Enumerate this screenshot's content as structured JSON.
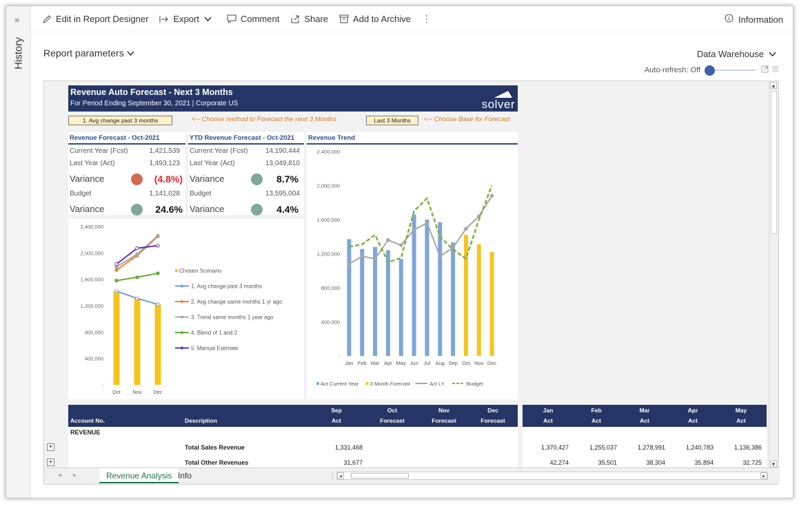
{
  "sidebar": {
    "expand_icon": "chevrons-right-icon",
    "label": "History"
  },
  "toolbar": {
    "edit_label": "Edit in Report Designer",
    "export_label": "Export",
    "comment_label": "Comment",
    "share_label": "Share",
    "archive_label": "Add to Archive",
    "info_label": "Information"
  },
  "report_parameters_label": "Report parameters",
  "data_source": "Data Warehouse",
  "auto_refresh_label": "Auto-refresh: Off",
  "report": {
    "title": "Revenue Auto Forecast - Next 3 Months",
    "subtitle": "For Period Ending September 30, 2021 | Corporate US",
    "logo": "solver",
    "method_select": "1. Avg change past 3 months",
    "method_hint": "<-- Choose method to Forecast the next 3 Months",
    "base_select": "Last 3 Months",
    "base_hint": "<-- Choose Base for Forecast"
  },
  "kpi_left": {
    "title": "Revenue Forecast - Oct-2021",
    "cy_label": "Current Year (Fcst)",
    "cy_value": "1,421,539",
    "ly_label": "Last Year (Act)",
    "ly_value": "1,493,123",
    "var1_label": "Variance",
    "var1_value": "(4.8%)",
    "budget_label": "Budget",
    "budget_value": "1,141,028",
    "var2_label": "Variance",
    "var2_value": "24.6%"
  },
  "kpi_right": {
    "title": "YTD Revenue Forecast - Oct-2021",
    "cy_label": "Current Year (Fcst)",
    "cy_value": "14,190,444",
    "ly_label": "Last Year (Act)",
    "ly_value": "13,049,810",
    "var1_label": "Variance",
    "var1_value": "8.7%",
    "budget_label": "Budget",
    "budget_value": "13,595,004",
    "var2_label": "Variance",
    "var2_value": "4.4%"
  },
  "colors": {
    "red": "#d06b4e",
    "green": "#7fa899",
    "navy": "#253565",
    "blue_bar": "#7fa5d9",
    "gold_bar": "#f7c41f"
  },
  "chart_data": [
    {
      "type": "bar",
      "title": "",
      "categories": [
        "Oct",
        "Nov",
        "Dec"
      ],
      "ylim": [
        0,
        2400000
      ],
      "yticks": [
        "-",
        "400,000",
        "800,000",
        "1,200,000",
        "1,600,000",
        "2,000,000",
        "2,400,000"
      ],
      "series": [
        {
          "name": "Chosen Scenario",
          "kind": "bar",
          "color": "#f7c41f",
          "values": [
            1421539,
            1310000,
            1220000
          ]
        },
        {
          "name": "1. Avg change past 3 months",
          "kind": "line",
          "color": "#6f9bd6",
          "values": [
            1421539,
            1310000,
            1220000
          ]
        },
        {
          "name": "2. Avg change same months 1 yr ago",
          "kind": "line",
          "color": "#e8823a",
          "values": [
            1740000,
            1960000,
            2250000
          ]
        },
        {
          "name": "3. Trend same months 1 year ago",
          "kind": "line",
          "color": "#a6a6a6",
          "values": [
            1790000,
            1980000,
            2260000
          ]
        },
        {
          "name": "4. Blend of 1 and 2",
          "kind": "line",
          "color": "#67a83c",
          "values": [
            1580000,
            1630000,
            1690000
          ]
        },
        {
          "name": "5. Manual Estimate",
          "kind": "line",
          "color": "#6b2fa0",
          "values": [
            1830000,
            2070000,
            2110000
          ]
        }
      ]
    },
    {
      "type": "bar",
      "title": "Revenue Trend",
      "categories": [
        "Jan",
        "Feb",
        "Mar",
        "Apr",
        "May",
        "Jun",
        "Jul",
        "Aug",
        "Sep",
        "Oct",
        "Nov",
        "Dec"
      ],
      "ylim": [
        0,
        2400000
      ],
      "yticks": [
        "-",
        "400,000",
        "800,000",
        "1,200,000",
        "1,600,000",
        "2,000,000",
        "2,400,000"
      ],
      "series": [
        {
          "name": "Act Current Year",
          "kind": "bar",
          "color": "#7fa5d9",
          "values": [
            1370427,
            1255037,
            1278991,
            1240783,
            1136386,
            1660000,
            1600000,
            1570000,
            1331468,
            null,
            null,
            null
          ]
        },
        {
          "name": "3 Month Forecast",
          "kind": "bar",
          "color": "#f7c41f",
          "values": [
            null,
            null,
            null,
            null,
            null,
            null,
            null,
            null,
            null,
            1421539,
            1310000,
            1220000
          ]
        },
        {
          "name": "Act LY",
          "kind": "line",
          "color": "#a6a6a6",
          "values": [
            1080000,
            1170000,
            1140000,
            1360000,
            1300000,
            1480000,
            1560000,
            1170000,
            1270000,
            1493123,
            1640000,
            1880000
          ]
        },
        {
          "name": "Budget",
          "kind": "line",
          "color": "#7db33d",
          "values": [
            1280000,
            1310000,
            1420000,
            1100000,
            1150000,
            1700000,
            1850000,
            1400000,
            1250000,
            1141028,
            1600000,
            2000000
          ]
        }
      ]
    }
  ],
  "table": {
    "headers": [
      {
        "top": "",
        "bottom": "Account No."
      },
      {
        "top": "",
        "bottom": "Description"
      },
      {
        "top": "Sep",
        "bottom": "Act"
      },
      {
        "top": "Oct",
        "bottom": "Forecast"
      },
      {
        "top": "Nov",
        "bottom": "Forecast"
      },
      {
        "top": "Dec",
        "bottom": "Forecast"
      }
    ],
    "headers_right": [
      {
        "top": "Jan",
        "bottom": "Act"
      },
      {
        "top": "Feb",
        "bottom": "Act"
      },
      {
        "top": "Mar",
        "bottom": "Act"
      },
      {
        "top": "Apr",
        "bottom": "Act"
      },
      {
        "top": "May",
        "bottom": "Act"
      }
    ],
    "section": "REVENUE",
    "rows": [
      {
        "description": "Total Sales Revenue",
        "sep": "1,331,468",
        "right": [
          "1,370,427",
          "1,255,037",
          "1,278,991",
          "1,240,783",
          "1,136,386"
        ]
      },
      {
        "description": "Total Other Revenues",
        "sep": "31,677",
        "right": [
          "42,274",
          "35,501",
          "38,304",
          "35,894",
          "32,725"
        ]
      }
    ]
  },
  "tabs": [
    {
      "label": "Revenue Analysis"
    },
    {
      "label": "Info"
    }
  ]
}
